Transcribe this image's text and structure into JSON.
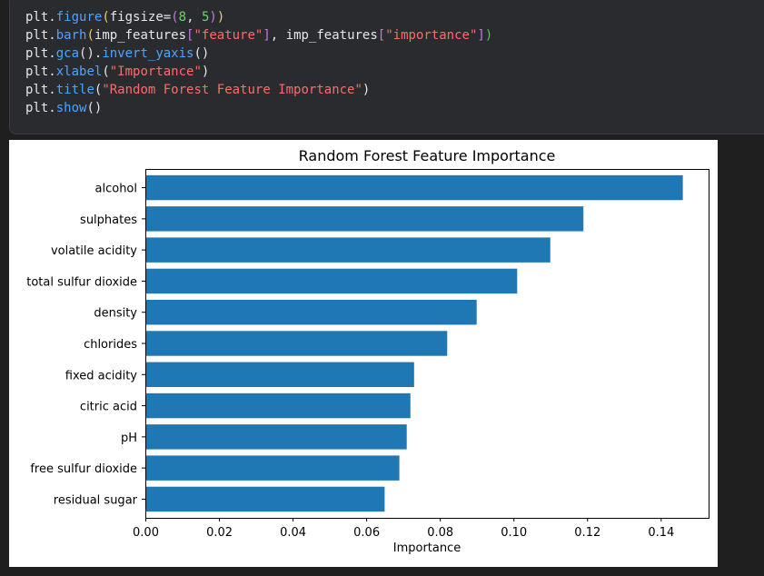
{
  "code": {
    "lines": [
      [
        [
          "plt",
          "kw"
        ],
        [
          ".",
          "kw"
        ],
        [
          "figure",
          "fn"
        ],
        [
          "(",
          "br"
        ],
        [
          "figsize",
          "kw"
        ],
        [
          "=",
          "kw"
        ],
        [
          "(",
          "br2"
        ],
        [
          "8",
          "num"
        ],
        [
          ", ",
          "kw"
        ],
        [
          "5",
          "num"
        ],
        [
          ")",
          "br2"
        ],
        [
          ")",
          "br"
        ]
      ],
      [
        [
          "plt",
          "kw"
        ],
        [
          ".",
          "kw"
        ],
        [
          "barh",
          "fn"
        ],
        [
          "(",
          "br"
        ],
        [
          "imp_features",
          "kw"
        ],
        [
          "[",
          "br2"
        ],
        [
          "\"feature\"",
          "str"
        ],
        [
          "]",
          "br2"
        ],
        [
          ", ",
          "kw"
        ],
        [
          "imp_features",
          "kw"
        ],
        [
          "[",
          "br2"
        ],
        [
          "\"importance\"",
          "str"
        ],
        [
          "]",
          "br2"
        ],
        [
          ")",
          "br3"
        ]
      ],
      [
        [
          "plt",
          "kw"
        ],
        [
          ".",
          "kw"
        ],
        [
          "gca",
          "fn"
        ],
        [
          "()",
          "kw"
        ],
        [
          ".",
          "kw"
        ],
        [
          "invert_yaxis",
          "fn"
        ],
        [
          "()",
          "kw"
        ]
      ],
      [
        [
          "plt",
          "kw"
        ],
        [
          ".",
          "kw"
        ],
        [
          "xlabel",
          "fn"
        ],
        [
          "(",
          "kw"
        ],
        [
          "\"Importance\"",
          "str"
        ],
        [
          ")",
          "kw"
        ]
      ],
      [
        [
          "plt",
          "kw"
        ],
        [
          ".",
          "kw"
        ],
        [
          "title",
          "fn"
        ],
        [
          "(",
          "kw"
        ],
        [
          "\"Random Forest Feature Importance\"",
          "str"
        ],
        [
          ")",
          "kw"
        ]
      ],
      [
        [
          "plt",
          "kw"
        ],
        [
          ".",
          "kw"
        ],
        [
          "show",
          "fn"
        ],
        [
          "()",
          "kw"
        ]
      ]
    ]
  },
  "colors": {
    "bar": "#1f77b4"
  },
  "chart_data": {
    "type": "bar",
    "orientation": "horizontal",
    "title": "Random Forest Feature Importance",
    "xlabel": "Importance",
    "ylabel": "",
    "categories": [
      "alcohol",
      "sulphates",
      "volatile acidity",
      "total sulfur dioxide",
      "density",
      "chlorides",
      "fixed acidity",
      "citric acid",
      "pH",
      "free sulfur dioxide",
      "residual sugar"
    ],
    "values": [
      0.146,
      0.119,
      0.11,
      0.101,
      0.09,
      0.082,
      0.073,
      0.072,
      0.071,
      0.069,
      0.065
    ],
    "xlim": [
      0,
      0.153
    ],
    "xticks": [
      0.0,
      0.02,
      0.04,
      0.06,
      0.08,
      0.1,
      0.12,
      0.14
    ],
    "xtick_labels": [
      "0.00",
      "0.02",
      "0.04",
      "0.06",
      "0.08",
      "0.10",
      "0.12",
      "0.14"
    ],
    "grid": false
  }
}
